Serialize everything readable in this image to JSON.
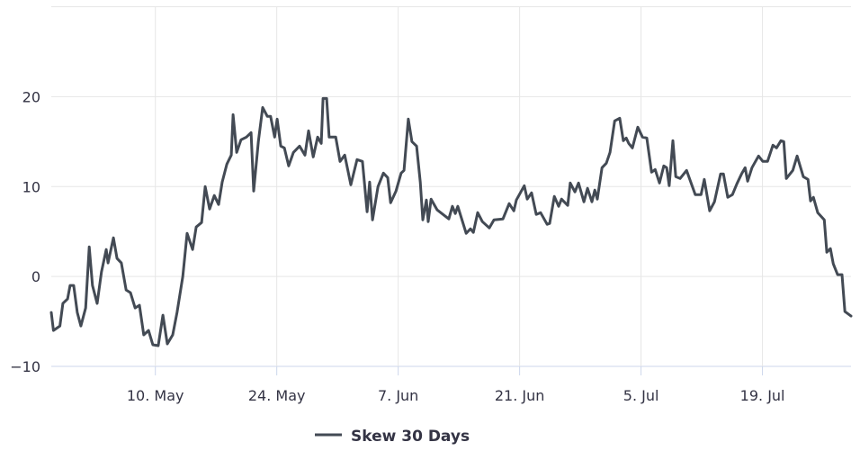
{
  "chart_data": {
    "type": "line",
    "title": "",
    "xlabel": "",
    "ylabel": "",
    "ylim": [
      -10,
      30
    ],
    "xlim": [
      "04-28 00",
      "07-29 05"
    ],
    "grid": true,
    "legend_placement": "bottom",
    "yticks": [
      {
        "value": -10,
        "label": "−10"
      },
      {
        "value": 0,
        "label": "0"
      },
      {
        "value": 10,
        "label": "10"
      },
      {
        "value": 20,
        "label": "20"
      },
      {
        "value": 30,
        "label": ""
      }
    ],
    "xticks": [
      {
        "value": "05-10 00",
        "label": "10. May"
      },
      {
        "value": "05-24 00",
        "label": "24. May"
      },
      {
        "value": "06-07 00",
        "label": "7. Jun"
      },
      {
        "value": "06-21 00",
        "label": "21. Jun"
      },
      {
        "value": "07-05 00",
        "label": "5. Jul"
      },
      {
        "value": "07-19 00",
        "label": "19. Jul"
      }
    ],
    "series": [
      {
        "name": "Skew 30 Days",
        "color": "#434a54",
        "points": [
          [
            "04-28 00",
            -4
          ],
          [
            "04-28 06",
            -6
          ],
          [
            "04-29 00",
            -5.5
          ],
          [
            "04-29 08",
            -3
          ],
          [
            "04-29 21",
            -2.5
          ],
          [
            "04-30 04",
            -1
          ],
          [
            "04-30 14",
            -1
          ],
          [
            "05-01 00",
            -4
          ],
          [
            "05-01 10",
            -5.5
          ],
          [
            "05-01 23",
            -3.5
          ],
          [
            "05-02 09",
            3.3
          ],
          [
            "05-02 18",
            -1
          ],
          [
            "05-03 07",
            -3
          ],
          [
            "05-03 19",
            0.5
          ],
          [
            "05-04 08",
            3
          ],
          [
            "05-04 13",
            1.5
          ],
          [
            "05-05 04",
            4.3
          ],
          [
            "05-05 14",
            2
          ],
          [
            "05-06 02",
            1.5
          ],
          [
            "05-06 15",
            -1.5
          ],
          [
            "05-07 03",
            -1.8
          ],
          [
            "05-07 16",
            -3.5
          ],
          [
            "05-08 04",
            -3.2
          ],
          [
            "05-08 16",
            -6.5
          ],
          [
            "05-09 05",
            -6
          ],
          [
            "05-09 17",
            -7.6
          ],
          [
            "05-10 08",
            -7.7
          ],
          [
            "05-10 21",
            -4.3
          ],
          [
            "05-11 09",
            -7.5
          ],
          [
            "05-12 00",
            -6.5
          ],
          [
            "05-12 12",
            -4
          ],
          [
            "05-13 04",
            0
          ],
          [
            "05-13 16",
            4.8
          ],
          [
            "05-14 07",
            3
          ],
          [
            "05-14 17",
            5.5
          ],
          [
            "05-15 08",
            6
          ],
          [
            "05-15 18",
            10
          ],
          [
            "05-16 06",
            7.5
          ],
          [
            "05-16 19",
            9
          ],
          [
            "05-17 07",
            8
          ],
          [
            "05-17 17",
            10.5
          ],
          [
            "05-18 06",
            12.5
          ],
          [
            "05-18 18",
            13.5
          ],
          [
            "05-18 23",
            18
          ],
          [
            "05-19 09",
            13.8
          ],
          [
            "05-19 21",
            15.2
          ],
          [
            "05-20 12",
            15.5
          ],
          [
            "05-21 01",
            16
          ],
          [
            "05-21 08",
            9.5
          ],
          [
            "05-21 21",
            15
          ],
          [
            "05-22 09",
            18.8
          ],
          [
            "05-22 22",
            17.8
          ],
          [
            "05-23 07",
            17.8
          ],
          [
            "05-23 18",
            15.5
          ],
          [
            "05-24 01",
            17.5
          ],
          [
            "05-24 11",
            14.5
          ],
          [
            "05-24 21",
            14.3
          ],
          [
            "05-25 09",
            12.3
          ],
          [
            "05-25 22",
            13.8
          ],
          [
            "05-26 15",
            14.5
          ],
          [
            "05-27 06",
            13.5
          ],
          [
            "05-27 16",
            16.2
          ],
          [
            "05-28 05",
            13.3
          ],
          [
            "05-28 17",
            15.5
          ],
          [
            "05-29 03",
            14.8
          ],
          [
            "05-29 08",
            19.8
          ],
          [
            "05-29 18",
            19.8
          ],
          [
            "05-30 01",
            15.5
          ],
          [
            "05-30 19",
            15.5
          ],
          [
            "05-31 07",
            12.8
          ],
          [
            "05-31 20",
            13.5
          ],
          [
            "06-01 13",
            10.2
          ],
          [
            "06-02 06",
            13
          ],
          [
            "06-02 21",
            12.8
          ],
          [
            "06-03 10",
            7.2
          ],
          [
            "06-03 17",
            10.5
          ],
          [
            "06-04 01",
            6.3
          ],
          [
            "06-04 16",
            10
          ],
          [
            "06-05 07",
            11.5
          ],
          [
            "06-05 19",
            11
          ],
          [
            "06-06 03",
            8.2
          ],
          [
            "06-06 18",
            9.5
          ],
          [
            "06-07 08",
            11.5
          ],
          [
            "06-07 16",
            11.8
          ],
          [
            "06-08 04",
            17.5
          ],
          [
            "06-08 14",
            15
          ],
          [
            "06-09 03",
            14.5
          ],
          [
            "06-09 13",
            10.5
          ],
          [
            "06-09 20",
            6.3
          ],
          [
            "06-10 06",
            8.5
          ],
          [
            "06-10 11",
            6.1
          ],
          [
            "06-10 19",
            8.6
          ],
          [
            "06-11 12",
            7.4
          ],
          [
            "06-12 20",
            6.4
          ],
          [
            "06-13 06",
            7.8
          ],
          [
            "06-13 14",
            7.0
          ],
          [
            "06-13 21",
            7.8
          ],
          [
            "06-14 20",
            4.8
          ],
          [
            "06-15 08",
            5.3
          ],
          [
            "06-15 16",
            4.9
          ],
          [
            "06-16 04",
            7.1
          ],
          [
            "06-16 17",
            6.1
          ],
          [
            "06-17 12",
            5.4
          ],
          [
            "06-18 01",
            6.3
          ],
          [
            "06-19 02",
            6.4
          ],
          [
            "06-19 19",
            8.1
          ],
          [
            "06-20 08",
            7.3
          ],
          [
            "06-20 15",
            8.5
          ],
          [
            "06-21 13",
            10.1
          ],
          [
            "06-21 21",
            8.6
          ],
          [
            "06-22 09",
            9.3
          ],
          [
            "06-22 22",
            6.9
          ],
          [
            "06-23 10",
            7.1
          ],
          [
            "06-24 04",
            5.8
          ],
          [
            "06-24 11",
            5.9
          ],
          [
            "06-25 00",
            8.9
          ],
          [
            "06-25 12",
            7.8
          ],
          [
            "06-25 20",
            8.6
          ],
          [
            "06-26 13",
            7.9
          ],
          [
            "06-26 20",
            10.4
          ],
          [
            "06-27 09",
            9.4
          ],
          [
            "06-27 19",
            10.4
          ],
          [
            "06-28 10",
            8.3
          ],
          [
            "06-28 20",
            9.8
          ],
          [
            "06-29 08",
            8.3
          ],
          [
            "06-29 16",
            9.6
          ],
          [
            "06-29 23",
            8.6
          ],
          [
            "06-30 12",
            12.1
          ],
          [
            "07-01 00",
            12.6
          ],
          [
            "07-01 10",
            13.8
          ],
          [
            "07-01 23",
            17.3
          ],
          [
            "07-02 13",
            17.6
          ],
          [
            "07-02 23",
            15.1
          ],
          [
            "07-03 07",
            15.4
          ],
          [
            "07-03 14",
            14.8
          ],
          [
            "07-04 00",
            14.3
          ],
          [
            "07-04 15",
            16.6
          ],
          [
            "07-05 04",
            15.5
          ],
          [
            "07-05 16",
            15.4
          ],
          [
            "07-06 05",
            11.6
          ],
          [
            "07-06 15",
            11.9
          ],
          [
            "07-07 03",
            10.4
          ],
          [
            "07-07 15",
            12.3
          ],
          [
            "07-07 23",
            12.1
          ],
          [
            "07-08 06",
            10.1
          ],
          [
            "07-08 16",
            15.1
          ],
          [
            "07-09 00",
            11.1
          ],
          [
            "07-09 12",
            10.9
          ],
          [
            "07-10 06",
            11.8
          ],
          [
            "07-11 06",
            9.1
          ],
          [
            "07-11 22",
            9.1
          ],
          [
            "07-12 07",
            10.8
          ],
          [
            "07-12 22",
            7.3
          ],
          [
            "07-13 11",
            8.3
          ],
          [
            "07-14 04",
            11.4
          ],
          [
            "07-14 12",
            11.4
          ],
          [
            "07-15 00",
            8.8
          ],
          [
            "07-15 13",
            9.1
          ],
          [
            "07-16 01",
            10.3
          ],
          [
            "07-16 14",
            11.4
          ],
          [
            "07-17 00",
            12.1
          ],
          [
            "07-17 07",
            10.6
          ],
          [
            "07-17 19",
            12.1
          ],
          [
            "07-18 13",
            13.4
          ],
          [
            "07-19 01",
            12.8
          ],
          [
            "07-19 14",
            12.8
          ],
          [
            "07-20 05",
            14.6
          ],
          [
            "07-20 15",
            14.3
          ],
          [
            "07-21 03",
            15.1
          ],
          [
            "07-21 11",
            15.0
          ],
          [
            "07-21 18",
            10.9
          ],
          [
            "07-22 12",
            11.8
          ],
          [
            "07-23 00",
            13.4
          ],
          [
            "07-23 17",
            11.1
          ],
          [
            "07-24 06",
            10.8
          ],
          [
            "07-24 13",
            8.4
          ],
          [
            "07-24 21",
            8.8
          ],
          [
            "07-25 09",
            7.1
          ],
          [
            "07-26 03",
            6.3
          ],
          [
            "07-26 10",
            2.7
          ],
          [
            "07-26 20",
            3.1
          ],
          [
            "07-27 04",
            1.4
          ],
          [
            "07-27 16",
            0.2
          ],
          [
            "07-28 04",
            0.2
          ],
          [
            "07-28 12",
            -3.9
          ],
          [
            "07-29 05",
            -4.4
          ]
        ]
      }
    ]
  }
}
